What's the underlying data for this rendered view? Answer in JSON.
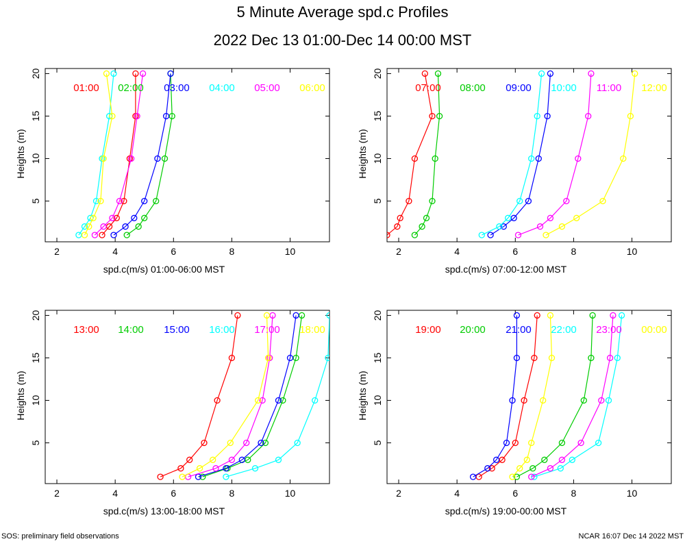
{
  "header": {
    "title": "5 Minute Average spd.c Profiles",
    "subtitle": "2022 Dec 13 01:00-Dec 14 00:00 MST"
  },
  "footer": {
    "left": "SOS: preliminary field observations",
    "right": "NCAR 16:07 Dec 14 2022 MST"
  },
  "colors": [
    "#ff0000",
    "#00cc00",
    "#0000ff",
    "#00ffff",
    "#ff00ff",
    "#ffff00"
  ],
  "chart_data": [
    {
      "type": "line",
      "xlabel": "spd.c(m/s) 01:00-06:00 MST",
      "ylabel": "Heights (m)",
      "xlim": [
        1.6,
        11.35
      ],
      "ylim": [
        0.2,
        20.6
      ],
      "xticks": [
        "2",
        "4",
        "6",
        "8",
        "10"
      ],
      "yticks": [
        "5",
        "10",
        "15",
        "20"
      ],
      "heights": [
        1,
        2,
        3,
        5,
        10,
        15,
        20
      ],
      "series": [
        {
          "name": "01:00",
          "values": [
            3.55,
            3.8,
            4.05,
            4.3,
            4.5,
            4.7,
            4.7
          ]
        },
        {
          "name": "02:00",
          "values": [
            4.4,
            4.8,
            5.0,
            5.4,
            5.7,
            5.95,
            5.9
          ]
        },
        {
          "name": "03:00",
          "values": [
            3.95,
            4.35,
            4.65,
            5.0,
            5.45,
            5.75,
            5.9
          ]
        },
        {
          "name": "04:00",
          "values": [
            2.75,
            2.95,
            3.15,
            3.35,
            3.55,
            3.8,
            3.95
          ]
        },
        {
          "name": "05:00",
          "values": [
            3.3,
            3.6,
            3.9,
            4.15,
            4.55,
            4.75,
            4.95
          ]
        },
        {
          "name": "06:00",
          "values": [
            2.95,
            3.1,
            3.25,
            3.5,
            3.6,
            3.9,
            3.7
          ]
        }
      ]
    },
    {
      "type": "line",
      "xlabel": "spd.c(m/s) 07:00-12:00 MST",
      "ylabel": "Heights (m)",
      "xlim": [
        1.6,
        11.35
      ],
      "ylim": [
        0.2,
        20.6
      ],
      "xticks": [
        "2",
        "4",
        "6",
        "8",
        "10"
      ],
      "yticks": [
        "5",
        "10",
        "15",
        "20"
      ],
      "heights": [
        1,
        2,
        3,
        5,
        10,
        15,
        20
      ],
      "series": [
        {
          "name": "07:00",
          "values": [
            1.6,
            1.95,
            2.05,
            2.35,
            2.55,
            3.15,
            2.9
          ]
        },
        {
          "name": "08:00",
          "values": [
            2.55,
            2.8,
            2.95,
            3.15,
            3.25,
            3.4,
            3.35
          ]
        },
        {
          "name": "09:00",
          "values": [
            5.15,
            5.6,
            5.95,
            6.45,
            6.8,
            7.1,
            7.2
          ]
        },
        {
          "name": "10:00",
          "values": [
            4.85,
            5.45,
            5.75,
            6.15,
            6.55,
            6.75,
            6.9
          ]
        },
        {
          "name": "11:00",
          "values": [
            6.1,
            6.85,
            7.2,
            7.75,
            8.15,
            8.5,
            8.6
          ]
        },
        {
          "name": "12:00",
          "values": [
            7.05,
            7.6,
            8.1,
            9.0,
            9.7,
            9.95,
            10.1
          ]
        }
      ]
    },
    {
      "type": "line",
      "xlabel": "spd.c(m/s) 13:00-18:00 MST",
      "ylabel": "Heights (m)",
      "xlim": [
        1.6,
        11.35
      ],
      "ylim": [
        0.2,
        20.6
      ],
      "xticks": [
        "2",
        "4",
        "6",
        "8",
        "10"
      ],
      "yticks": [
        "5",
        "10",
        "15",
        "20"
      ],
      "heights": [
        1,
        2,
        3,
        5,
        10,
        15,
        20
      ],
      "series": [
        {
          "name": "13:00",
          "values": [
            5.55,
            6.25,
            6.55,
            7.05,
            7.5,
            8.0,
            8.2
          ]
        },
        {
          "name": "14:00",
          "values": [
            7.0,
            7.85,
            8.55,
            9.15,
            9.75,
            10.2,
            10.4
          ]
        },
        {
          "name": "15:00",
          "values": [
            6.85,
            7.8,
            8.35,
            9.0,
            9.6,
            10.0,
            10.2
          ]
        },
        {
          "name": "16:00",
          "values": [
            7.8,
            8.8,
            9.6,
            10.25,
            10.85,
            11.3,
            11.35
          ]
        },
        {
          "name": "17:00",
          "values": [
            6.5,
            7.45,
            8.0,
            8.5,
            9.05,
            9.3,
            9.4
          ]
        },
        {
          "name": "18:00",
          "values": [
            6.3,
            6.9,
            7.35,
            7.95,
            8.9,
            9.25,
            9.2
          ]
        }
      ]
    },
    {
      "type": "line",
      "xlabel": "spd.c(m/s) 19:00-00:00 MST",
      "ylabel": "Heights (m)",
      "xlim": [
        1.6,
        11.35
      ],
      "ylim": [
        0.2,
        20.6
      ],
      "xticks": [
        "2",
        "4",
        "6",
        "8",
        "10"
      ],
      "yticks": [
        "5",
        "10",
        "15",
        "20"
      ],
      "heights": [
        1,
        2,
        3,
        5,
        10,
        15,
        20
      ],
      "series": [
        {
          "name": "19:00",
          "values": [
            4.75,
            5.2,
            5.55,
            6.0,
            6.3,
            6.65,
            6.75
          ]
        },
        {
          "name": "20:00",
          "values": [
            6.05,
            6.6,
            7.0,
            7.6,
            8.35,
            8.6,
            8.65
          ]
        },
        {
          "name": "21:00",
          "values": [
            4.55,
            5.05,
            5.35,
            5.7,
            5.9,
            6.05,
            6.05
          ]
        },
        {
          "name": "22:00",
          "values": [
            6.65,
            7.55,
            7.95,
            8.85,
            9.2,
            9.5,
            9.65
          ]
        },
        {
          "name": "23:00",
          "values": [
            6.55,
            7.2,
            7.6,
            8.25,
            8.95,
            9.25,
            9.35
          ]
        },
        {
          "name": "00:00",
          "values": [
            5.9,
            6.15,
            6.4,
            6.55,
            6.95,
            7.25,
            7.2
          ]
        }
      ]
    }
  ]
}
